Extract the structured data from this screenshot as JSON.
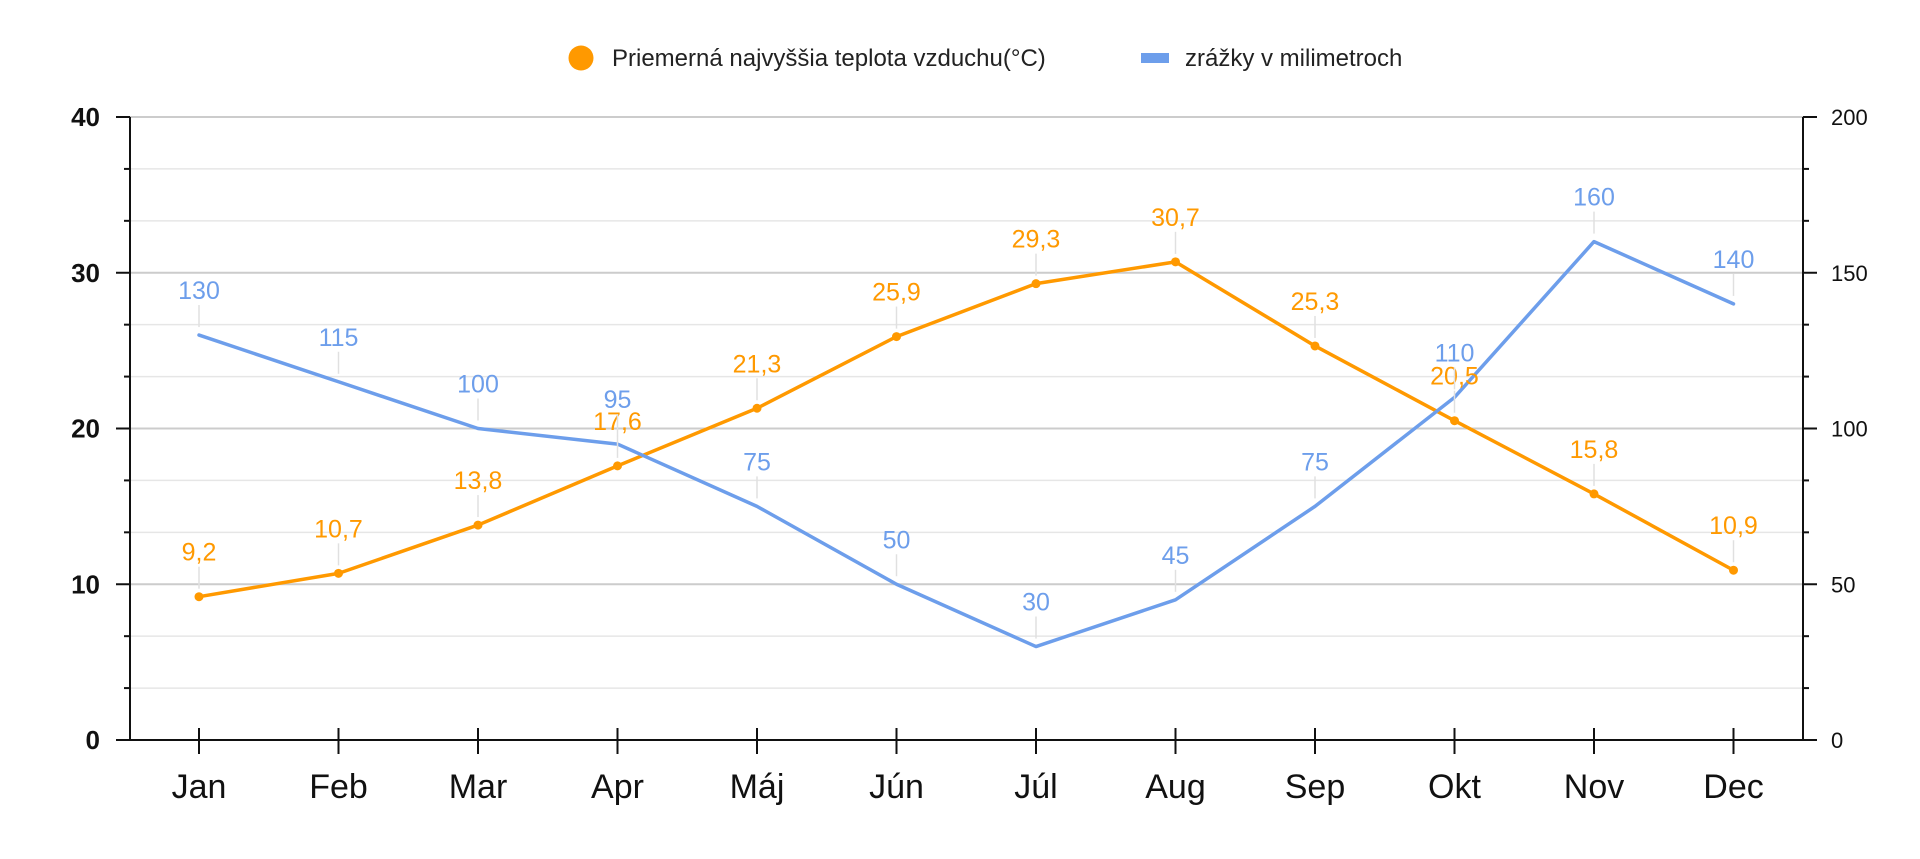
{
  "chart_data": {
    "type": "line",
    "title": "",
    "categories": [
      "Jan",
      "Feb",
      "Mar",
      "Apr",
      "Máj",
      "Jún",
      "Júl",
      "Aug",
      "Sep",
      "Okt",
      "Nov",
      "Dec"
    ],
    "series": [
      {
        "name": "Priemerná najvyššia teplota vzduchu(°C)",
        "axis": "left",
        "color": "#FF9900",
        "marker": "circle",
        "values": [
          9.2,
          10.7,
          13.8,
          17.6,
          21.3,
          25.9,
          29.3,
          30.7,
          25.3,
          20.5,
          15.8,
          10.9
        ],
        "labels": [
          "9,2",
          "10,7",
          "13,8",
          "17,6",
          "21,3",
          "25,9",
          "29,3",
          "30,7",
          "25,3",
          "20,5",
          "15,8",
          "10,9"
        ]
      },
      {
        "name": "zrážky v milimetroch",
        "axis": "right",
        "color": "#6D9EEB",
        "marker": "none",
        "values": [
          130,
          115,
          100,
          95,
          75,
          50,
          30,
          45,
          75,
          110,
          160,
          140
        ],
        "labels": [
          "130",
          "115",
          "100",
          "95",
          "75",
          "50",
          "30",
          "45",
          "75",
          "110",
          "160",
          "140"
        ]
      }
    ],
    "y_left": {
      "range": [
        0,
        40
      ],
      "ticks": [
        "0",
        "10",
        "20",
        "30",
        "40"
      ],
      "tick_values": [
        0,
        10,
        20,
        30,
        40
      ]
    },
    "y_right": {
      "range": [
        0,
        200
      ],
      "ticks": [
        "0",
        "50",
        "100",
        "150",
        "200"
      ],
      "tick_values": [
        0,
        50,
        100,
        150,
        200
      ]
    },
    "grid": true,
    "legend_position": "top-center"
  }
}
